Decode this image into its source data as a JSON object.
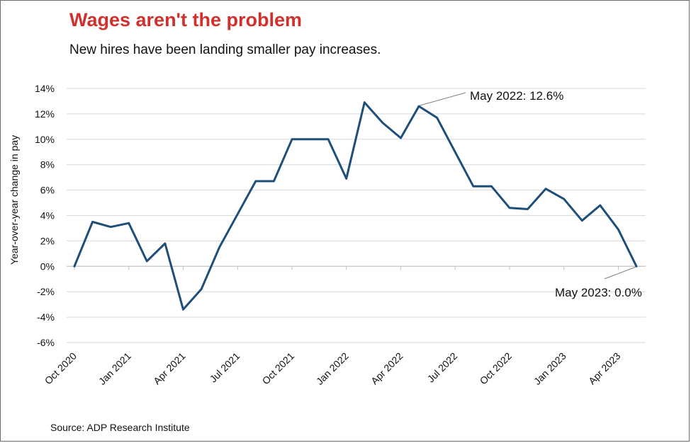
{
  "title": "Wages aren't the problem",
  "subtitle": "New hires have been landing smaller pay increases.",
  "source": "Source: ADP Research Institute",
  "colors": {
    "title": "#d0312d",
    "line": "#1f4e79",
    "grid": "#d9d9d9",
    "annotation_leader": "#7f7f7f"
  },
  "chart_data": {
    "type": "line",
    "ylabel": "Year-over-year change in pay",
    "xlabel": "",
    "ylim": [
      -6,
      14
    ],
    "y_ticks": [
      14,
      12,
      10,
      8,
      6,
      4,
      2,
      0,
      -2,
      -4,
      -6
    ],
    "y_tick_labels": [
      "14%",
      "12%",
      "10%",
      "8%",
      "6%",
      "4%",
      "2%",
      "0%",
      "-2%",
      "-4%",
      "-6%"
    ],
    "grid": "horizontal",
    "legend": "none",
    "x": [
      "Oct 2020",
      "Nov 2020",
      "Dec 2020",
      "Jan 2021",
      "Feb 2021",
      "Mar 2021",
      "Apr 2021",
      "May 2021",
      "Jun 2021",
      "Jul 2021",
      "Aug 2021",
      "Sep 2021",
      "Oct 2021",
      "Nov 2021",
      "Dec 2021",
      "Jan 2022",
      "Feb 2022",
      "Mar 2022",
      "Apr 2022",
      "May 2022",
      "Jun 2022",
      "Jul 2022",
      "Aug 2022",
      "Sep 2022",
      "Oct 2022",
      "Nov 2022",
      "Dec 2022",
      "Jan 2023",
      "Feb 2023",
      "Mar 2023",
      "Apr 2023",
      "May 2023"
    ],
    "x_tick_labels": [
      "Oct 2020",
      "Jan 2021",
      "Apr 2021",
      "Jul 2021",
      "Oct 2021",
      "Jan 2022",
      "Apr 2022",
      "Jul 2022",
      "Oct 2022",
      "Jan 2023",
      "Apr 2023"
    ],
    "series": [
      {
        "values": [
          0.0,
          3.5,
          3.1,
          3.4,
          0.4,
          1.8,
          -3.4,
          -1.8,
          1.5,
          4.1,
          6.7,
          6.7,
          10.0,
          10.0,
          10.0,
          6.9,
          12.9,
          11.3,
          10.1,
          12.6,
          11.7,
          9.0,
          6.3,
          6.3,
          4.6,
          4.5,
          6.1,
          5.3,
          3.6,
          4.8,
          2.9,
          0.0
        ]
      }
    ],
    "annotations": [
      {
        "text": "May 2022: 12.6%",
        "x": "May 2022",
        "y": 12.6
      },
      {
        "text": "May 2023: 0.0%",
        "x": "May 2023",
        "y": 0.0
      }
    ]
  }
}
